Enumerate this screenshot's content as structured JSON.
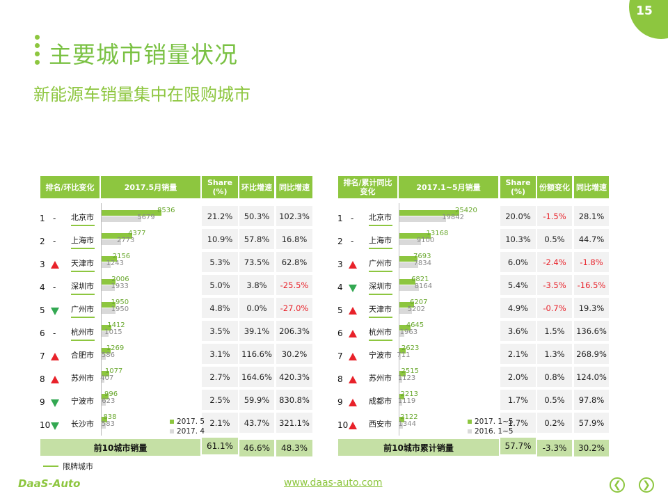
{
  "page_number": "15",
  "title": "主要城市销量状况",
  "subtitle": "新能源车销量集中在限购城市",
  "footer_url": "www.daas-auto.com",
  "logo_text": "DaaS-Auto",
  "legend_limit": "限牌城市",
  "colors": {
    "accent": "#8dc63f",
    "up": "#e8222a",
    "down": "#33a852",
    "prev": "#d9d9d9"
  },
  "left_table": {
    "headers": {
      "rank": "排名/环比变化",
      "sales": "2017.5月销量",
      "share": "Share (%)",
      "mom": "环比增速",
      "yoy": "同比增速"
    },
    "legend": {
      "current": "2017. 5",
      "previous": "2017. 4"
    },
    "axis_max": 8536,
    "rows": [
      {
        "rank": "1",
        "change": "-",
        "city": "北京市",
        "limited": true,
        "current": 8536,
        "previous": 5679,
        "share": "21.2%",
        "mom": "50.3%",
        "yoy": "102.3%"
      },
      {
        "rank": "2",
        "change": "-",
        "city": "上海市",
        "limited": true,
        "current": 4377,
        "previous": 2773,
        "share": "10.9%",
        "mom": "57.8%",
        "yoy": "16.8%"
      },
      {
        "rank": "3",
        "change": "up",
        "city": "天津市",
        "limited": true,
        "current": 2156,
        "previous": 1243,
        "share": "5.3%",
        "mom": "73.5%",
        "yoy": "62.8%"
      },
      {
        "rank": "4",
        "change": "-",
        "city": "深圳市",
        "limited": true,
        "current": 2006,
        "previous": 1933,
        "share": "5.0%",
        "mom": "3.8%",
        "yoy": "-25.5%"
      },
      {
        "rank": "5",
        "change": "down",
        "city": "广州市",
        "limited": true,
        "current": 1950,
        "previous": 1950,
        "share": "4.8%",
        "mom": "0.0%",
        "yoy": "-27.0%"
      },
      {
        "rank": "6",
        "change": "-",
        "city": "杭州市",
        "limited": true,
        "current": 1412,
        "previous": 1015,
        "share": "3.5%",
        "mom": "39.1%",
        "yoy": "206.3%"
      },
      {
        "rank": "7",
        "change": "up",
        "city": "合肥市",
        "limited": false,
        "current": 1269,
        "previous": 586,
        "share": "3.1%",
        "mom": "116.6%",
        "yoy": "30.2%"
      },
      {
        "rank": "8",
        "change": "up",
        "city": "苏州市",
        "limited": false,
        "current": 1077,
        "previous": 407,
        "share": "2.7%",
        "mom": "164.6%",
        "yoy": "420.3%"
      },
      {
        "rank": "9",
        "change": "down",
        "city": "宁波市",
        "limited": false,
        "current": 996,
        "previous": 623,
        "share": "2.5%",
        "mom": "59.9%",
        "yoy": "830.8%"
      },
      {
        "rank": "10",
        "change": "down",
        "city": "长沙市",
        "limited": false,
        "current": 838,
        "previous": 583,
        "share": "2.1%",
        "mom": "43.7%",
        "yoy": "321.1%"
      }
    ],
    "total": {
      "label": "前10城市销量",
      "share": "61.1%",
      "mom": "46.6%",
      "yoy": "48.3%"
    }
  },
  "right_table": {
    "headers": {
      "rank": "排名/累计同比变化",
      "sales": "2017.1~5月销量",
      "share": "Share (%)",
      "share_change": "份额变化",
      "yoy": "同比增速"
    },
    "legend": {
      "current": "2017. 1~5",
      "previous": "2016. 1~5"
    },
    "axis_max": 25420,
    "rows": [
      {
        "rank": "1",
        "change": "-",
        "city": "北京市",
        "limited": true,
        "current": 25420,
        "previous": 19842,
        "share": "20.0%",
        "share_change": "-1.5%",
        "yoy": "28.1%"
      },
      {
        "rank": "2",
        "change": "-",
        "city": "上海市",
        "limited": true,
        "current": 13168,
        "previous": 9100,
        "share": "10.3%",
        "share_change": "0.5%",
        "yoy": "44.7%"
      },
      {
        "rank": "3",
        "change": "up",
        "city": "广州市",
        "limited": true,
        "current": 7693,
        "previous": 7834,
        "share": "6.0%",
        "share_change": "-2.4%",
        "yoy": "-1.8%"
      },
      {
        "rank": "4",
        "change": "down",
        "city": "深圳市",
        "limited": true,
        "current": 6821,
        "previous": 8164,
        "share": "5.4%",
        "share_change": "-3.5%",
        "yoy": "-16.5%"
      },
      {
        "rank": "5",
        "change": "up",
        "city": "天津市",
        "limited": true,
        "current": 6207,
        "previous": 5202,
        "share": "4.9%",
        "share_change": "-0.7%",
        "yoy": "19.3%"
      },
      {
        "rank": "6",
        "change": "up",
        "city": "杭州市",
        "limited": true,
        "current": 4645,
        "previous": 1963,
        "share": "3.6%",
        "share_change": "1.5%",
        "yoy": "136.6%"
      },
      {
        "rank": "7",
        "change": "up",
        "city": "宁波市",
        "limited": false,
        "current": 2623,
        "previous": 711,
        "share": "2.1%",
        "share_change": "1.3%",
        "yoy": "268.9%"
      },
      {
        "rank": "8",
        "change": "up",
        "city": "苏州市",
        "limited": false,
        "current": 2515,
        "previous": 1123,
        "share": "2.0%",
        "share_change": "0.8%",
        "yoy": "124.0%"
      },
      {
        "rank": "9",
        "change": "up",
        "city": "成都市",
        "limited": false,
        "current": 2213,
        "previous": 1119,
        "share": "1.7%",
        "share_change": "0.5%",
        "yoy": "97.8%"
      },
      {
        "rank": "10",
        "change": "up",
        "city": "西安市",
        "limited": false,
        "current": 2122,
        "previous": 1344,
        "share": "1.7%",
        "share_change": "0.2%",
        "yoy": "57.9%"
      }
    ],
    "total": {
      "label": "前10城市累计销量",
      "share": "57.7%",
      "share_change": "-3.3%",
      "yoy": "30.2%"
    }
  }
}
